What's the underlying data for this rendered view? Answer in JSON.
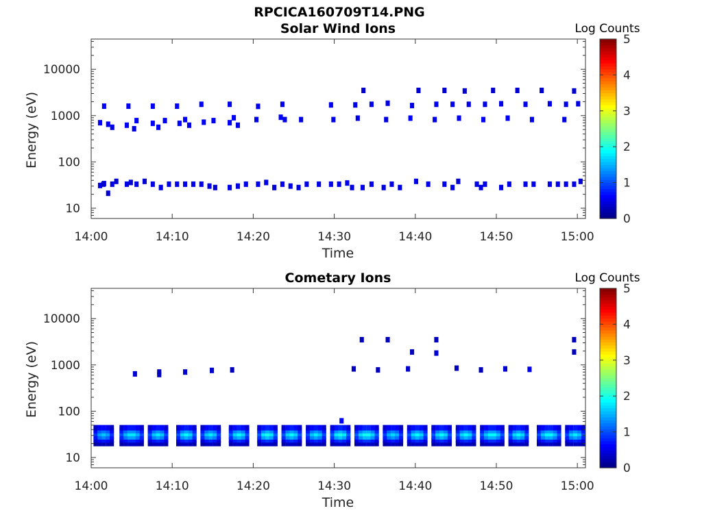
{
  "figure_title": "RPCICA160709T14.PNG",
  "chart_data": [
    {
      "type": "heatmap",
      "title": "Solar Wind Ions",
      "xlabel": "Time",
      "ylabel": "Energy (eV)",
      "x_ticks": [
        "14:00",
        "14:10",
        "14:20",
        "14:30",
        "14:40",
        "14:50",
        "15:00"
      ],
      "xlim_minutes": [
        0,
        61
      ],
      "y_scale": "log",
      "ylim": [
        6,
        45000
      ],
      "y_ticks": [
        10,
        100,
        1000,
        10000
      ],
      "y_tick_labels": [
        "10",
        "100",
        "1000",
        "10000"
      ],
      "colorbar": {
        "label": "Log Counts",
        "range": [
          0,
          5
        ],
        "ticks": [
          "0",
          "1",
          "2",
          "3",
          "4",
          "5"
        ]
      },
      "grid": false,
      "cells": [
        [
          1.1,
          31,
          0.5
        ],
        [
          1.6,
          34,
          0.5
        ],
        [
          2.1,
          21,
          0.4
        ],
        [
          2.6,
          33,
          0.5
        ],
        [
          3.1,
          38,
          0.4
        ],
        [
          1.5,
          33,
          0.4
        ],
        [
          4.4,
          33,
          0.5
        ],
        [
          5.6,
          33,
          0.5
        ],
        [
          6.6,
          38,
          0.4
        ],
        [
          4.9,
          36,
          0.4
        ],
        [
          7.6,
          33,
          0.5
        ],
        [
          8.6,
          28,
          0.5
        ],
        [
          9.6,
          33,
          0.5
        ],
        [
          10.6,
          33,
          0.5
        ],
        [
          11.6,
          33,
          0.5
        ],
        [
          12.6,
          33,
          0.5
        ],
        [
          13.6,
          33,
          0.5
        ],
        [
          14.6,
          30,
          0.5
        ],
        [
          15.3,
          28,
          0.4
        ],
        [
          17.1,
          28,
          0.5
        ],
        [
          18.1,
          30,
          0.5
        ],
        [
          19.1,
          33,
          0.5
        ],
        [
          20.6,
          33,
          0.5
        ],
        [
          21.6,
          36,
          0.5
        ],
        [
          22.6,
          28,
          0.4
        ],
        [
          23.6,
          33,
          0.5
        ],
        [
          24.6,
          30,
          0.5
        ],
        [
          25.6,
          28,
          0.5
        ],
        [
          26.6,
          33,
          0.5
        ],
        [
          28.1,
          33,
          0.5
        ],
        [
          29.6,
          33,
          0.5
        ],
        [
          30.6,
          33,
          0.5
        ],
        [
          31.6,
          35,
          0.5
        ],
        [
          32.2,
          28,
          0.5
        ],
        [
          33.5,
          28,
          0.5
        ],
        [
          34.6,
          33,
          0.5
        ],
        [
          36.1,
          28,
          0.5
        ],
        [
          37.1,
          33,
          0.5
        ],
        [
          38.1,
          28,
          0.5
        ],
        [
          40.1,
          38,
          0.5
        ],
        [
          41.6,
          33,
          0.5
        ],
        [
          43.6,
          33,
          0.5
        ],
        [
          44.6,
          28,
          0.5
        ],
        [
          45.3,
          38,
          0.4
        ],
        [
          47.6,
          33,
          0.5
        ],
        [
          48.1,
          28,
          0.5
        ],
        [
          48.6,
          33,
          0.5
        ],
        [
          50.6,
          28,
          0.5
        ],
        [
          51.6,
          33,
          0.5
        ],
        [
          53.6,
          33,
          0.5
        ],
        [
          54.6,
          33,
          0.5
        ],
        [
          56.6,
          33,
          0.5
        ],
        [
          57.6,
          33,
          0.5
        ],
        [
          58.6,
          33,
          0.5
        ],
        [
          59.6,
          33,
          0.5
        ],
        [
          60.4,
          38,
          0.4
        ],
        [
          1.1,
          700,
          0.6
        ],
        [
          2.1,
          650,
          0.6
        ],
        [
          2.6,
          560,
          0.5
        ],
        [
          4.4,
          620,
          0.6
        ],
        [
          5.3,
          520,
          0.5
        ],
        [
          5.6,
          780,
          0.6
        ],
        [
          7.6,
          680,
          0.6
        ],
        [
          8.3,
          560,
          0.6
        ],
        [
          9.1,
          780,
          0.5
        ],
        [
          10.9,
          680,
          0.6
        ],
        [
          11.6,
          820,
          0.6
        ],
        [
          12.1,
          620,
          0.5
        ],
        [
          13.9,
          720,
          0.6
        ],
        [
          15.1,
          780,
          0.6
        ],
        [
          17.1,
          700,
          0.6
        ],
        [
          17.6,
          900,
          0.6
        ],
        [
          18.1,
          620,
          0.5
        ],
        [
          20.4,
          820,
          0.5
        ],
        [
          23.4,
          920,
          0.6
        ],
        [
          23.9,
          820,
          0.5
        ],
        [
          25.9,
          820,
          0.5
        ],
        [
          29.9,
          820,
          0.5
        ],
        [
          32.9,
          880,
          0.5
        ],
        [
          36.4,
          820,
          0.5
        ],
        [
          39.4,
          880,
          0.6
        ],
        [
          42.4,
          820,
          0.5
        ],
        [
          45.4,
          880,
          0.6
        ],
        [
          48.4,
          820,
          0.6
        ],
        [
          51.4,
          880,
          0.6
        ],
        [
          54.4,
          820,
          0.5
        ],
        [
          58.4,
          820,
          0.5
        ],
        [
          1.6,
          1600,
          0.6
        ],
        [
          4.6,
          1600,
          0.6
        ],
        [
          7.6,
          1600,
          0.6
        ],
        [
          10.6,
          1600,
          0.6
        ],
        [
          13.6,
          1750,
          0.6
        ],
        [
          17.1,
          1750,
          0.5
        ],
        [
          20.6,
          1580,
          0.5
        ],
        [
          23.6,
          1750,
          0.5
        ],
        [
          29.6,
          1700,
          0.5
        ],
        [
          32.6,
          1700,
          0.5
        ],
        [
          33.6,
          3500,
          0.4
        ],
        [
          34.6,
          1750,
          0.5
        ],
        [
          36.6,
          1850,
          0.5
        ],
        [
          39.6,
          1650,
          0.5
        ],
        [
          40.4,
          3500,
          0.4
        ],
        [
          42.6,
          1750,
          0.5
        ],
        [
          43.6,
          3500,
          0.4
        ],
        [
          44.6,
          1750,
          0.5
        ],
        [
          46.1,
          3400,
          0.4
        ],
        [
          46.6,
          1750,
          0.5
        ],
        [
          48.6,
          1750,
          0.5
        ],
        [
          49.6,
          3500,
          0.4
        ],
        [
          50.6,
          1800,
          0.5
        ],
        [
          52.6,
          3500,
          0.4
        ],
        [
          53.6,
          1750,
          0.5
        ],
        [
          55.6,
          3500,
          0.4
        ],
        [
          56.6,
          1800,
          0.5
        ],
        [
          58.6,
          1750,
          0.5
        ],
        [
          59.6,
          3400,
          0.4
        ],
        [
          60.1,
          1800,
          0.5
        ]
      ]
    },
    {
      "type": "heatmap",
      "title": "Cometary Ions",
      "xlabel": "Time",
      "ylabel": "Energy (eV)",
      "x_ticks": [
        "14:00",
        "14:10",
        "14:20",
        "14:30",
        "14:40",
        "14:50",
        "15:00"
      ],
      "xlim_minutes": [
        0,
        61
      ],
      "y_scale": "log",
      "ylim": [
        6,
        45000
      ],
      "y_ticks": [
        10,
        100,
        1000,
        10000
      ],
      "y_tick_labels": [
        "10",
        "100",
        "1000",
        "10000"
      ],
      "colorbar": {
        "label": "Log Counts",
        "range": [
          0,
          5
        ],
        "ticks": [
          "0",
          "1",
          "2",
          "3",
          "4",
          "5"
        ]
      },
      "grid": false,
      "band_clusters": [
        {
          "start": 0.3,
          "end": 3.0,
          "peak": 1.6
        },
        {
          "start": 3.5,
          "end": 6.5,
          "peak": 1.8
        },
        {
          "start": 7.0,
          "end": 9.5,
          "peak": 1.8
        },
        {
          "start": 10.5,
          "end": 13.0,
          "peak": 1.9
        },
        {
          "start": 13.5,
          "end": 16.0,
          "peak": 1.8
        },
        {
          "start": 17.0,
          "end": 19.5,
          "peak": 1.9
        },
        {
          "start": 20.5,
          "end": 23.0,
          "peak": 2.0
        },
        {
          "start": 23.5,
          "end": 26.0,
          "peak": 1.9
        },
        {
          "start": 26.5,
          "end": 29.0,
          "peak": 1.8
        },
        {
          "start": 29.5,
          "end": 32.0,
          "peak": 2.0
        },
        {
          "start": 32.5,
          "end": 35.5,
          "peak": 2.0
        },
        {
          "start": 36.0,
          "end": 38.5,
          "peak": 1.7
        },
        {
          "start": 39.0,
          "end": 41.5,
          "peak": 1.9
        },
        {
          "start": 42.0,
          "end": 44.5,
          "peak": 1.9
        },
        {
          "start": 45.0,
          "end": 47.5,
          "peak": 1.9
        },
        {
          "start": 48.0,
          "end": 51.0,
          "peak": 1.9
        },
        {
          "start": 51.5,
          "end": 54.0,
          "peak": 1.9
        },
        {
          "start": 55.0,
          "end": 58.0,
          "peak": 1.9
        },
        {
          "start": 58.5,
          "end": 61.0,
          "peak": 1.8
        }
      ],
      "cells": [
        [
          5.4,
          640,
          0.4
        ],
        [
          8.4,
          700,
          0.3
        ],
        [
          8.4,
          620,
          0.3
        ],
        [
          11.6,
          700,
          0.4
        ],
        [
          14.9,
          760,
          0.4
        ],
        [
          17.4,
          780,
          0.3
        ],
        [
          30.9,
          62,
          0.6
        ],
        [
          32.4,
          820,
          0.3
        ],
        [
          33.4,
          3500,
          0.3
        ],
        [
          35.4,
          780,
          0.3
        ],
        [
          36.6,
          3500,
          0.3
        ],
        [
          39.1,
          820,
          0.4
        ],
        [
          39.6,
          1900,
          0.3
        ],
        [
          42.6,
          3500,
          0.3
        ],
        [
          42.6,
          1800,
          0.4
        ],
        [
          45.1,
          850,
          0.3
        ],
        [
          48.1,
          780,
          0.3
        ],
        [
          51.1,
          820,
          0.4
        ],
        [
          54.1,
          800,
          0.5
        ],
        [
          59.6,
          3500,
          0.3
        ],
        [
          59.6,
          1900,
          0.3
        ]
      ]
    }
  ]
}
